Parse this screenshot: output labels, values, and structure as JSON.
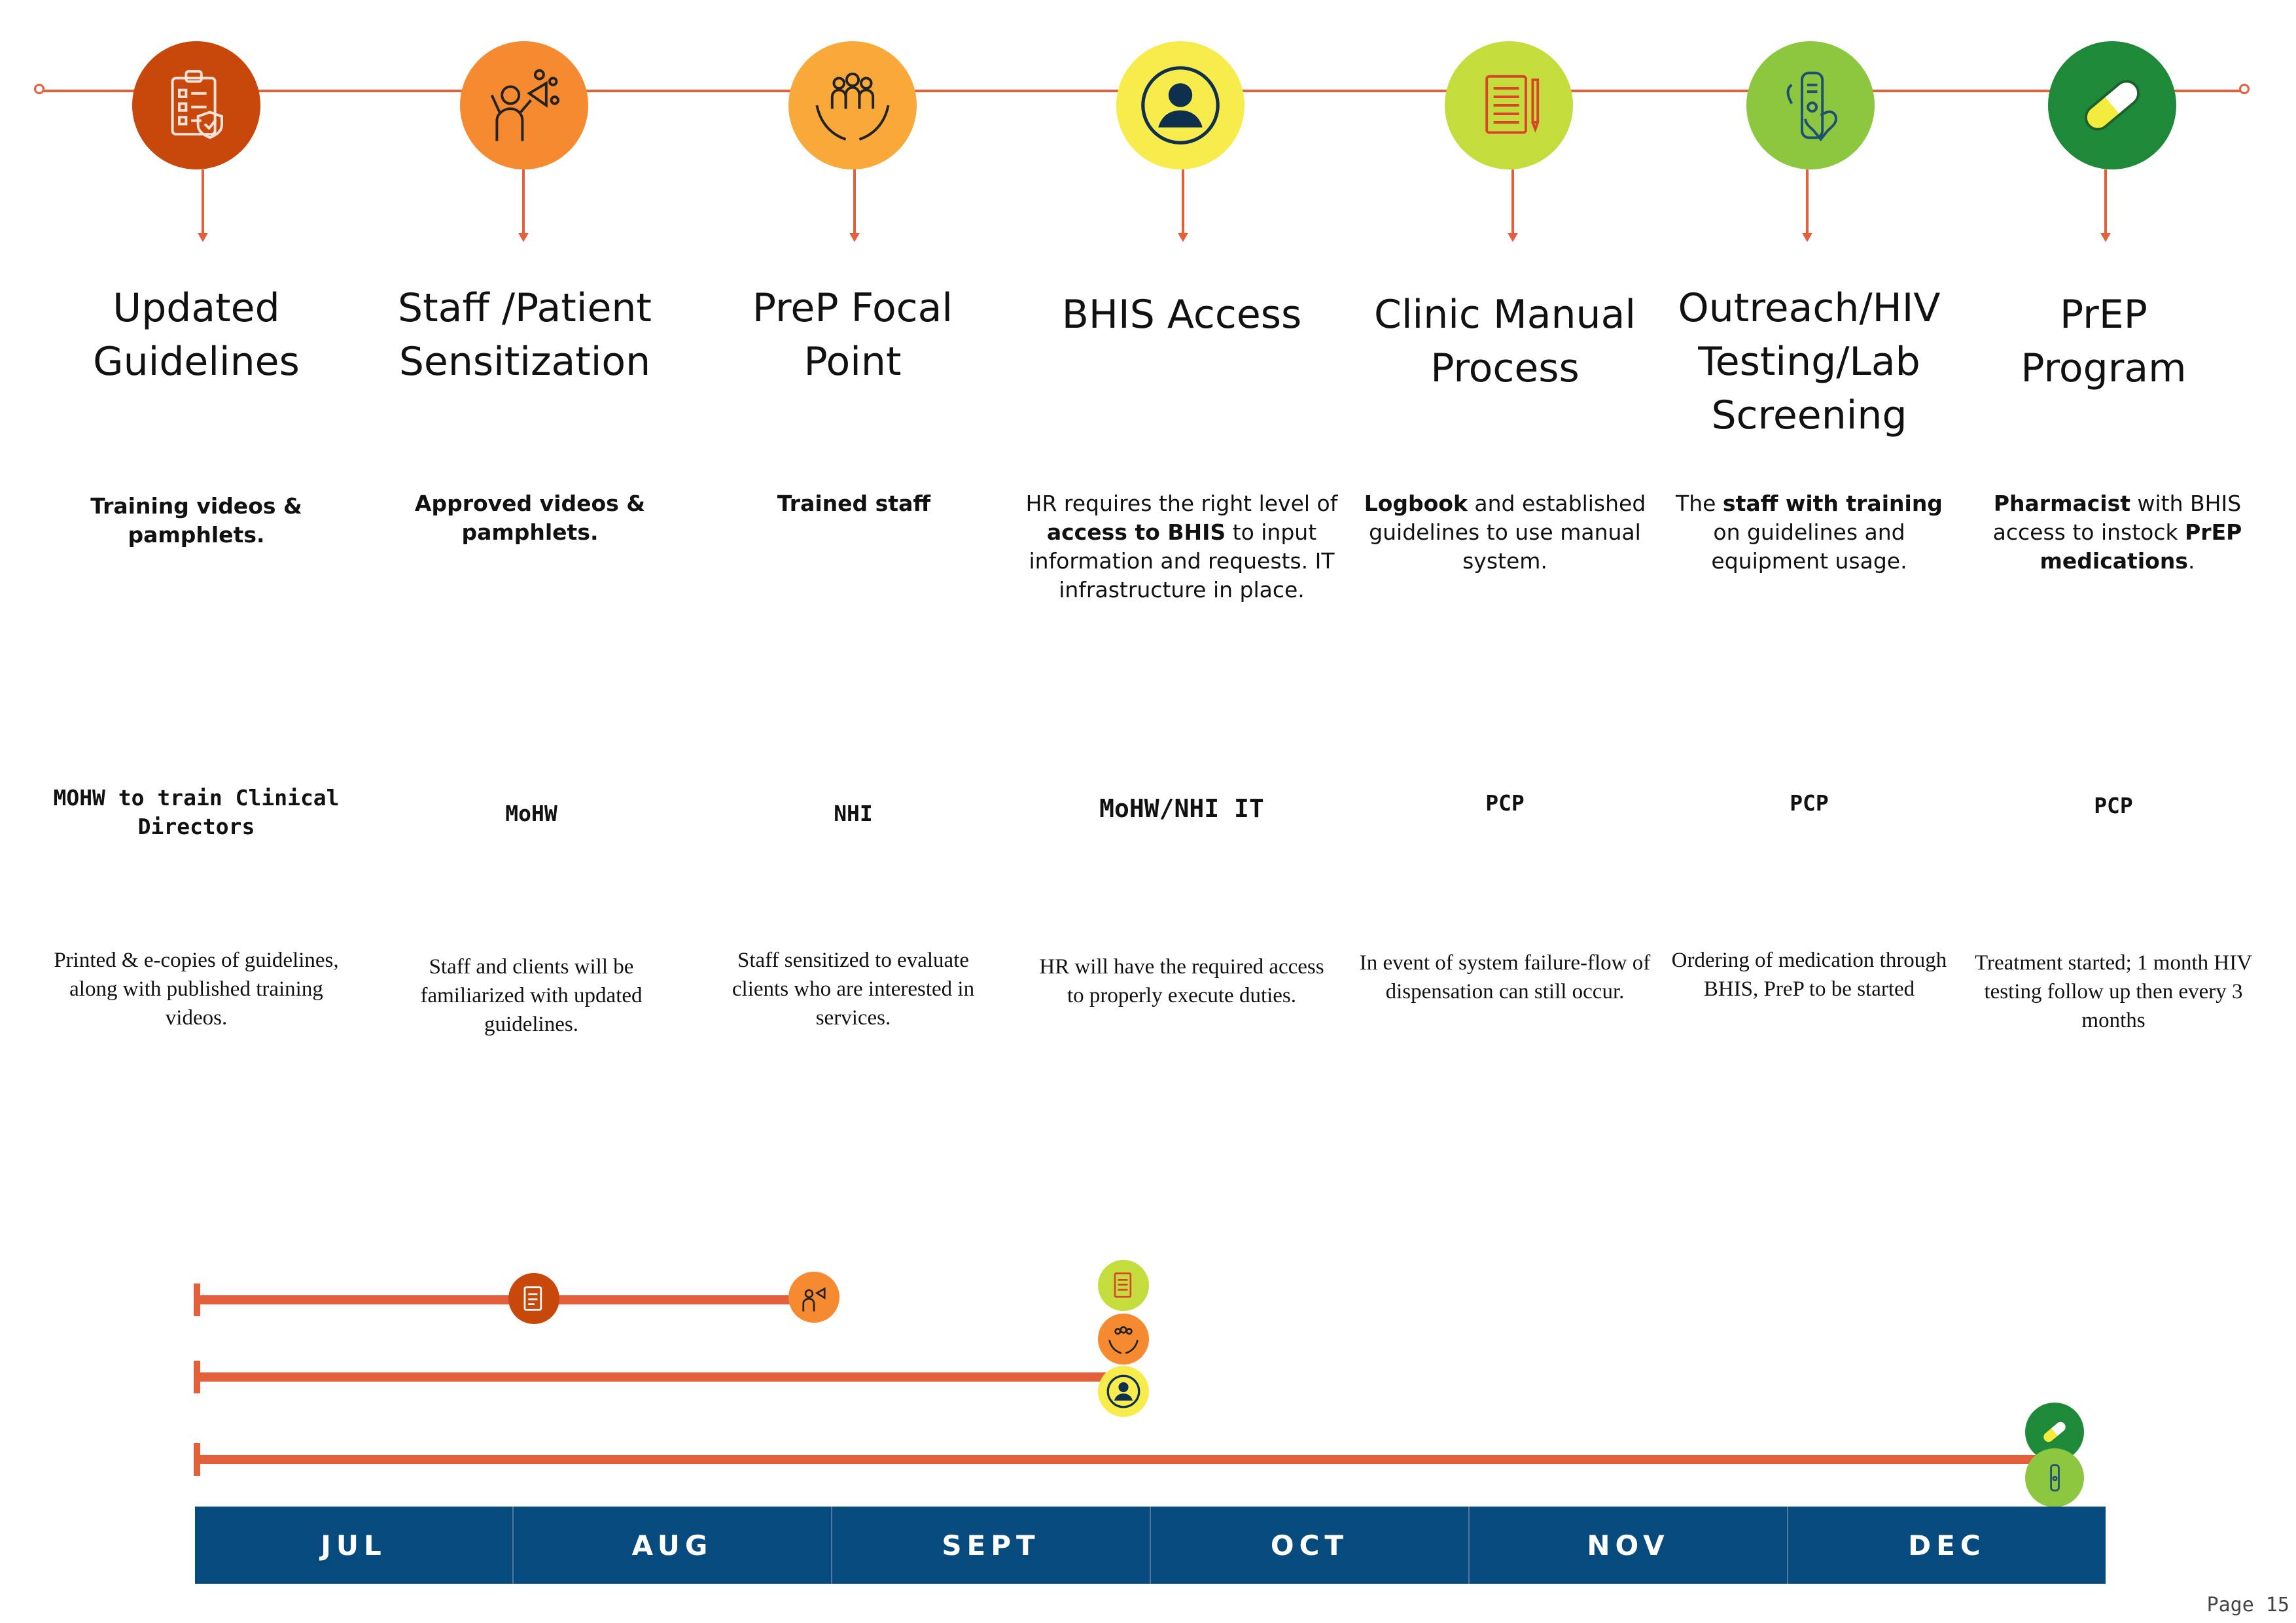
{
  "stages": [
    {
      "title": "Updated Guidelines",
      "icon": "checklist-shield-icon",
      "color": "#c8470b",
      "requirement": [
        {
          "t": "Training videos & pamphlets.",
          "b": true
        }
      ],
      "owner": "MOHW to train Clinical Directors",
      "outcome": "Printed & e-copies of guidelines, along with published training videos."
    },
    {
      "title": "Staff /Patient Sensitization",
      "icon": "megaphone-person-icon",
      "color": "#f58a30",
      "requirement": [
        {
          "t": "Approved videos & pamphlets.",
          "b": true
        }
      ],
      "owner": "MoHW",
      "outcome": "Staff and clients will be familiarized with updated guidelines."
    },
    {
      "title": "PreP Focal Point",
      "icon": "hands-people-icon",
      "color": "#f8a93a",
      "requirement": [
        {
          "t": "Trained staff",
          "b": true
        }
      ],
      "owner": "NHI",
      "outcome": "Staff sensitized to evaluate clients who are interested in services."
    },
    {
      "title": "BHIS Access",
      "icon": "user-avatar-icon",
      "color": "#f8ec4d",
      "requirement": [
        {
          "t": "HR requires the right level of ",
          "b": false
        },
        {
          "t": "access to BHIS",
          "b": true
        },
        {
          "t": " to input information and requests. IT infrastructure in place.",
          "b": false
        }
      ],
      "owner": "MoHW/NHI IT",
      "outcome": "HR will have the required access to properly execute duties."
    },
    {
      "title": "Clinic Manual Process",
      "icon": "notebook-pencil-icon",
      "color": "#c5dc3d",
      "requirement": [
        {
          "t": "Logbook",
          "b": true
        },
        {
          "t": " and established guidelines to use manual system.",
          "b": false
        }
      ],
      "owner": "PCP",
      "outcome": "In event of system failure-flow of dispensation can still occur."
    },
    {
      "title": "Outreach/HIV Testing/Lab Screening",
      "icon": "test-kit-ribbon-icon",
      "color": "#8dc63f",
      "requirement": [
        {
          "t": "The ",
          "b": false
        },
        {
          "t": "staff with training",
          "b": true
        },
        {
          "t": " on guidelines and equipment usage.",
          "b": false
        }
      ],
      "owner": "PCP",
      "outcome": "Ordering of medication through BHIS, PreP to be started"
    },
    {
      "title": "PrEP Program",
      "icon": "pill-capsule-icon",
      "color": "#1e8a39",
      "requirement": [
        {
          "t": "Pharmacist",
          "b": true
        },
        {
          "t": " with BHIS access to instock ",
          "b": false
        },
        {
          "t": "PrEP medications",
          "b": true
        },
        {
          "t": ".",
          "b": false
        }
      ],
      "owner": "PCP",
      "outcome": "Treatment started; 1 month HIV testing follow up then every 3 months"
    }
  ],
  "months": [
    "JUL",
    "AUG",
    "SEPT",
    "OCT",
    "NOV",
    "DEC"
  ],
  "page_label": "Page 15"
}
